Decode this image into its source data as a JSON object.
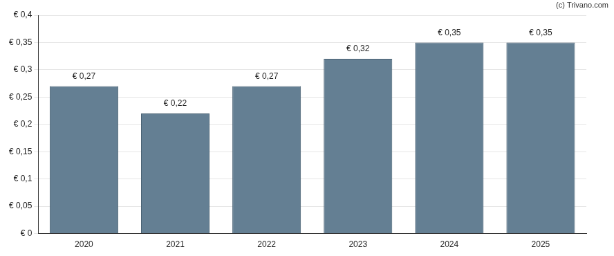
{
  "chart_data": {
    "type": "bar",
    "annotations": [
      "(c) Trivano.com"
    ],
    "categories": [
      "2020",
      "2021",
      "2022",
      "2023",
      "2024",
      "2025"
    ],
    "values": [
      0.27,
      0.22,
      0.27,
      0.32,
      0.35,
      0.35
    ],
    "value_labels": [
      "€ 0,27",
      "€ 0,22",
      "€ 0,27",
      "€ 0,32",
      "€ 0,35",
      "€ 0,35"
    ],
    "data_labels": true,
    "color": "#647f93",
    "ylim": [
      0,
      0.4
    ],
    "yticks": [
      {
        "value": 0,
        "label": "€ 0"
      },
      {
        "value": 0.05,
        "label": "€ 0,05"
      },
      {
        "value": 0.1,
        "label": "€ 0,1"
      },
      {
        "value": 0.15,
        "label": "€ 0,15"
      },
      {
        "value": 0.2,
        "label": "€ 0,2"
      },
      {
        "value": 0.25,
        "label": "€ 0,25"
      },
      {
        "value": 0.3,
        "label": "€ 0,3"
      },
      {
        "value": 0.35,
        "label": "€ 0,35"
      },
      {
        "value": 0.4,
        "label": "€ 0,4"
      }
    ],
    "grid": true
  }
}
